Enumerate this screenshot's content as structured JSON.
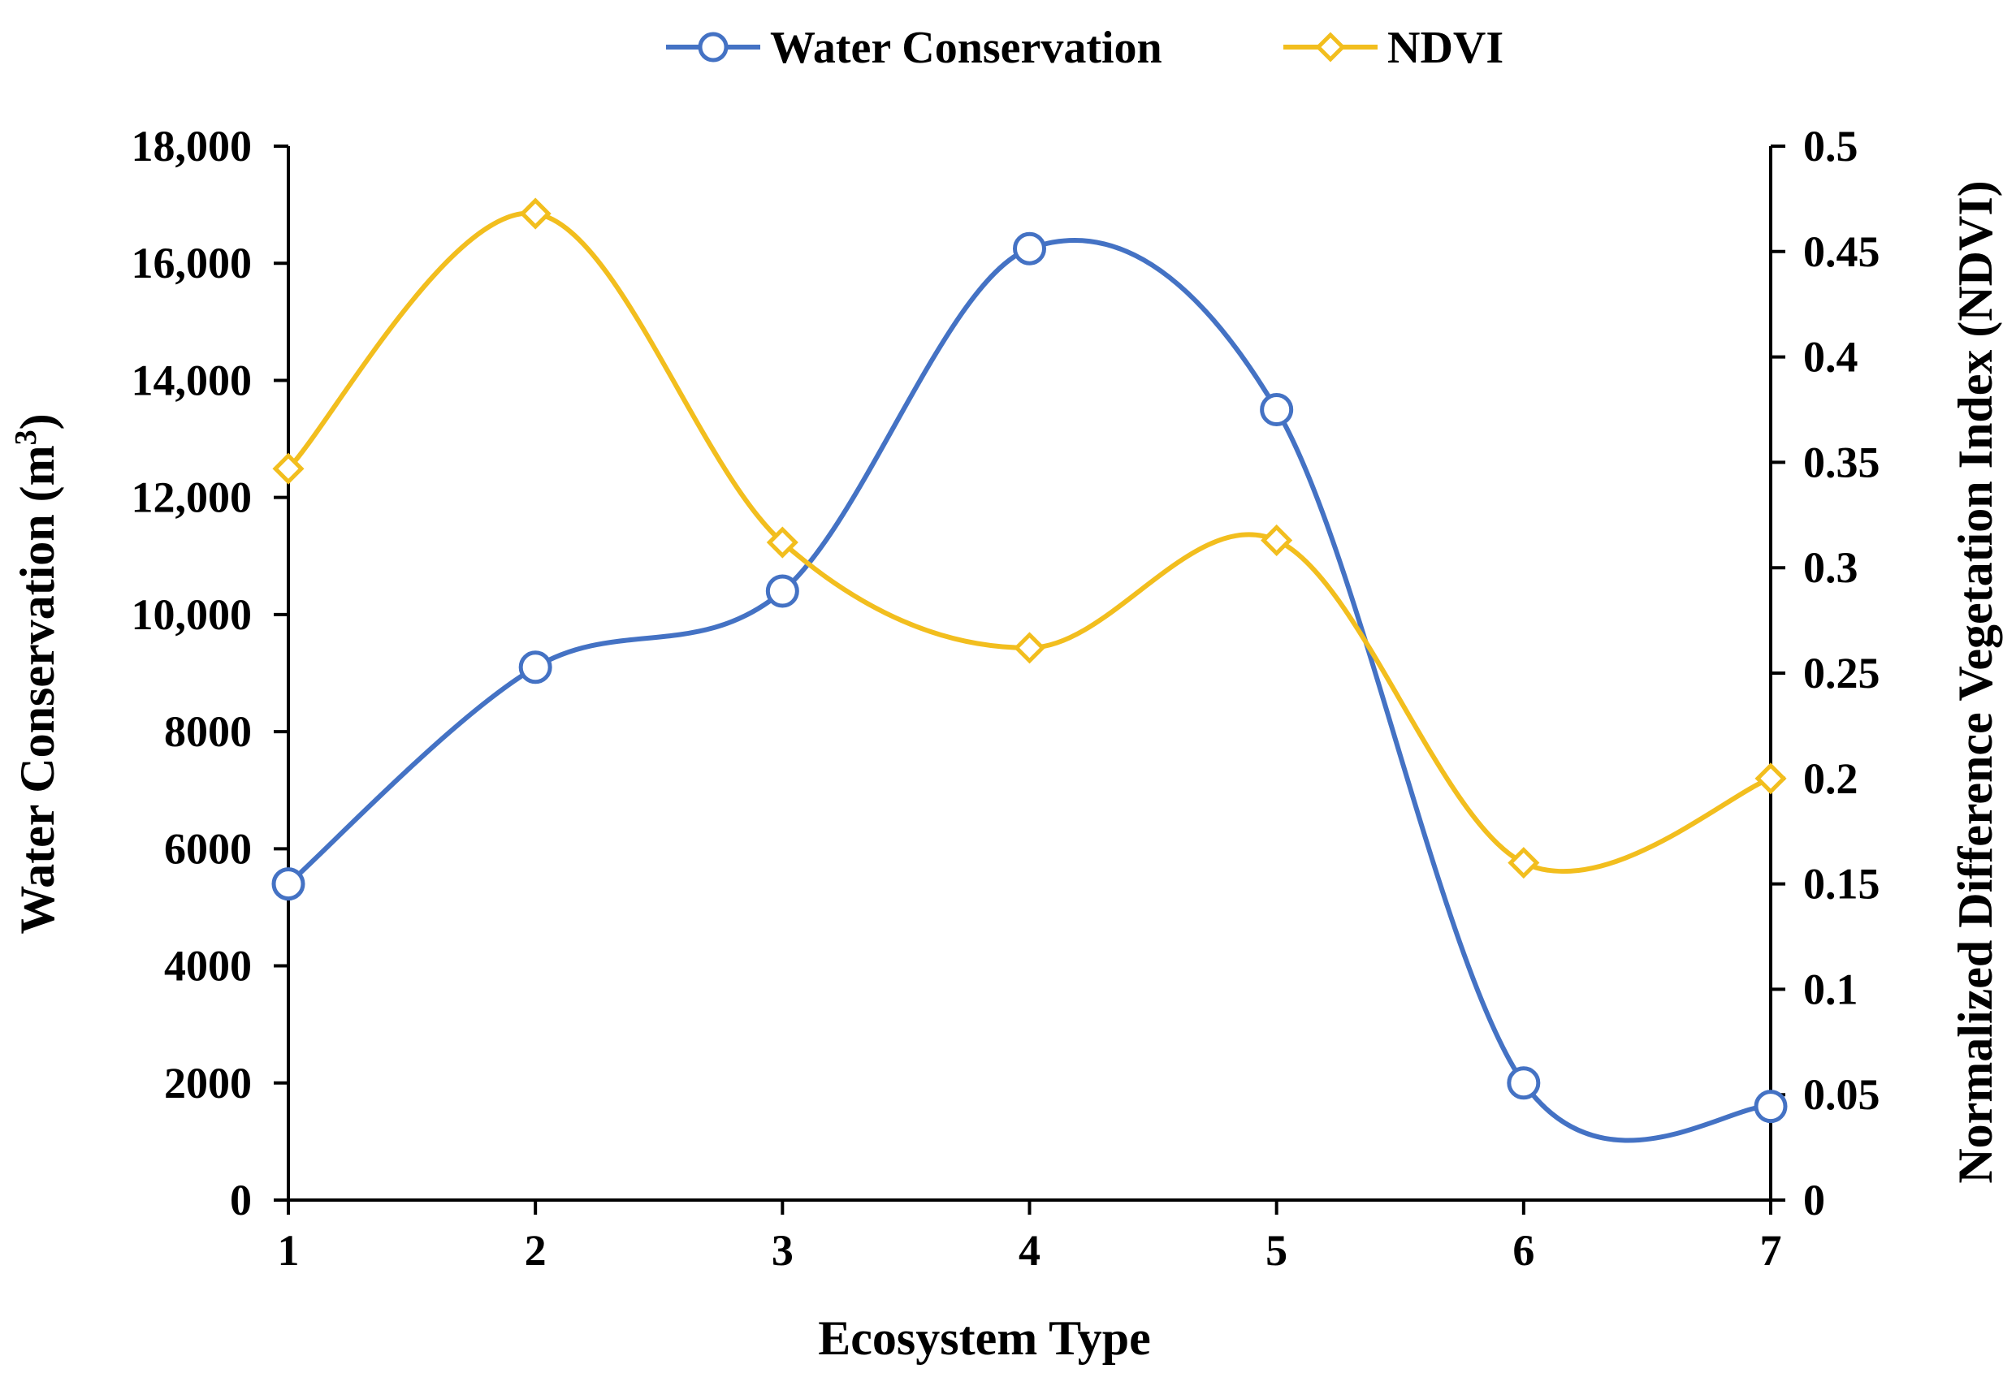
{
  "chart_data": {
    "type": "line",
    "smooth": true,
    "x": [
      1,
      2,
      3,
      4,
      5,
      6,
      7
    ],
    "xlabel": "Ecosystem Type",
    "ylabel_left_main": "Water Conservation (m",
    "ylabel_left_sup": "3",
    "ylabel_left_close": ")",
    "ylabel_right": "Normalized Difference Vegetation Index (NDVI)",
    "xlim": [
      1,
      7
    ],
    "ylim_left": [
      0,
      18000
    ],
    "ylim_right": [
      0,
      0.5
    ],
    "grid": false,
    "legend_position": "top-center",
    "x_ticks": [
      "1",
      "2",
      "3",
      "4",
      "5",
      "6",
      "7"
    ],
    "y_left_ticks": [
      "0",
      "2000",
      "4000",
      "6000",
      "8000",
      "10,000",
      "12,000",
      "14,000",
      "16,000",
      "18,000"
    ],
    "y_right_ticks": [
      "0",
      "0.05",
      "0.1",
      "0.15",
      "0.2",
      "0.25",
      "0.3",
      "0.35",
      "0.4",
      "0.45",
      "0.5"
    ],
    "series": [
      {
        "name": "Water Conservation",
        "axis": "left",
        "marker": "circle",
        "color": "#4472C4",
        "values": [
          5400,
          9100,
          10400,
          16250,
          13500,
          2000,
          1600
        ]
      },
      {
        "name": "NDVI",
        "axis": "right",
        "marker": "diamond",
        "color": "#F2BE1E",
        "values": [
          0.347,
          0.468,
          0.312,
          0.262,
          0.313,
          0.16,
          0.2
        ]
      }
    ]
  }
}
